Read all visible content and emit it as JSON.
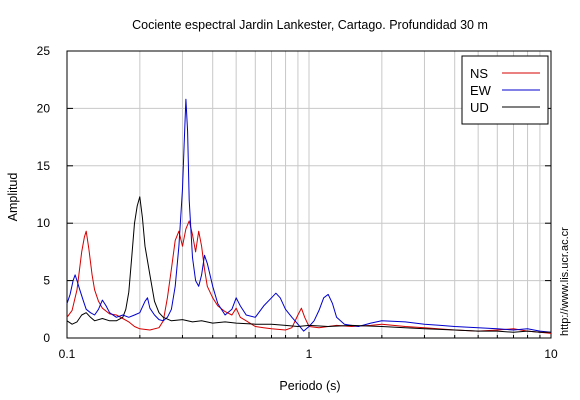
{
  "chart_data": {
    "type": "line",
    "title": "Cociente espectral Jardin Lankester, Cartago. Profundidad 30 m",
    "xlabel": "Periodo (s)",
    "ylabel": "Amplitud",
    "xscale": "log",
    "xlim": [
      0.1,
      10
    ],
    "ylim": [
      0,
      25
    ],
    "xticks": [
      {
        "value": 0.1,
        "label": "0.1"
      },
      {
        "value": 1,
        "label": "1"
      },
      {
        "value": 10,
        "label": "10"
      }
    ],
    "yticks": [
      {
        "value": 0,
        "label": "0"
      },
      {
        "value": 5,
        "label": "5"
      },
      {
        "value": 10,
        "label": "10"
      },
      {
        "value": 15,
        "label": "15"
      },
      {
        "value": 20,
        "label": "20"
      },
      {
        "value": 25,
        "label": "25"
      }
    ],
    "grid": true,
    "legend_position": "top-right",
    "credit": "http://www.lis.ucr.ac.cr",
    "series": [
      {
        "name": "NS",
        "color": "#d40000",
        "points": [
          [
            0.1,
            1.8
          ],
          [
            0.105,
            2.4
          ],
          [
            0.11,
            4.2
          ],
          [
            0.115,
            7.5
          ],
          [
            0.118,
            8.8
          ],
          [
            0.12,
            9.3
          ],
          [
            0.123,
            7.8
          ],
          [
            0.127,
            5.5
          ],
          [
            0.13,
            4.2
          ],
          [
            0.135,
            3.2
          ],
          [
            0.14,
            2.6
          ],
          [
            0.15,
            2.1
          ],
          [
            0.16,
            2.0
          ],
          [
            0.17,
            1.7
          ],
          [
            0.18,
            1.4
          ],
          [
            0.19,
            1.0
          ],
          [
            0.2,
            0.8
          ],
          [
            0.22,
            0.7
          ],
          [
            0.24,
            0.9
          ],
          [
            0.25,
            1.5
          ],
          [
            0.26,
            3.5
          ],
          [
            0.27,
            6.0
          ],
          [
            0.28,
            8.5
          ],
          [
            0.29,
            9.3
          ],
          [
            0.3,
            8.0
          ],
          [
            0.31,
            9.5
          ],
          [
            0.32,
            10.2
          ],
          [
            0.33,
            9.0
          ],
          [
            0.34,
            7.5
          ],
          [
            0.35,
            9.3
          ],
          [
            0.36,
            8.0
          ],
          [
            0.37,
            6.0
          ],
          [
            0.38,
            4.5
          ],
          [
            0.4,
            3.5
          ],
          [
            0.42,
            2.8
          ],
          [
            0.45,
            2.3
          ],
          [
            0.48,
            2.0
          ],
          [
            0.5,
            2.6
          ],
          [
            0.52,
            1.8
          ],
          [
            0.55,
            1.5
          ],
          [
            0.6,
            1.0
          ],
          [
            0.65,
            0.9
          ],
          [
            0.7,
            0.8
          ],
          [
            0.8,
            0.7
          ],
          [
            0.85,
            0.9
          ],
          [
            0.9,
            2.0
          ],
          [
            0.93,
            2.6
          ],
          [
            0.96,
            1.8
          ],
          [
            1.0,
            1.0
          ],
          [
            1.1,
            0.9
          ],
          [
            1.2,
            1.0
          ],
          [
            1.3,
            1.1
          ],
          [
            1.5,
            1.0
          ],
          [
            1.8,
            1.1
          ],
          [
            2.0,
            1.2
          ],
          [
            2.5,
            1.0
          ],
          [
            3.0,
            0.9
          ],
          [
            4.0,
            0.7
          ],
          [
            5.0,
            0.6
          ],
          [
            6.0,
            0.7
          ],
          [
            7.0,
            0.8
          ],
          [
            8.0,
            0.6
          ],
          [
            9.0,
            0.5
          ],
          [
            10.0,
            0.4
          ]
        ]
      },
      {
        "name": "EW",
        "color": "#0000cc",
        "points": [
          [
            0.1,
            3.0
          ],
          [
            0.103,
            3.8
          ],
          [
            0.106,
            5.0
          ],
          [
            0.108,
            5.5
          ],
          [
            0.11,
            5.0
          ],
          [
            0.113,
            4.2
          ],
          [
            0.117,
            3.2
          ],
          [
            0.12,
            2.5
          ],
          [
            0.125,
            2.2
          ],
          [
            0.13,
            2.0
          ],
          [
            0.135,
            2.5
          ],
          [
            0.14,
            3.3
          ],
          [
            0.145,
            2.8
          ],
          [
            0.15,
            2.2
          ],
          [
            0.16,
            1.8
          ],
          [
            0.17,
            2.0
          ],
          [
            0.18,
            1.8
          ],
          [
            0.19,
            2.0
          ],
          [
            0.2,
            2.2
          ],
          [
            0.21,
            3.2
          ],
          [
            0.215,
            3.5
          ],
          [
            0.22,
            2.6
          ],
          [
            0.23,
            2.0
          ],
          [
            0.24,
            1.6
          ],
          [
            0.25,
            1.5
          ],
          [
            0.26,
            1.8
          ],
          [
            0.27,
            2.5
          ],
          [
            0.28,
            4.5
          ],
          [
            0.29,
            8.0
          ],
          [
            0.3,
            13.0
          ],
          [
            0.305,
            17.0
          ],
          [
            0.31,
            20.8
          ],
          [
            0.315,
            18.0
          ],
          [
            0.32,
            12.0
          ],
          [
            0.33,
            7.0
          ],
          [
            0.34,
            5.0
          ],
          [
            0.35,
            4.5
          ],
          [
            0.36,
            5.5
          ],
          [
            0.37,
            7.2
          ],
          [
            0.38,
            6.5
          ],
          [
            0.4,
            4.5
          ],
          [
            0.42,
            3.0
          ],
          [
            0.45,
            2.0
          ],
          [
            0.48,
            2.5
          ],
          [
            0.5,
            3.5
          ],
          [
            0.52,
            2.8
          ],
          [
            0.55,
            2.0
          ],
          [
            0.6,
            1.8
          ],
          [
            0.65,
            2.8
          ],
          [
            0.7,
            3.5
          ],
          [
            0.73,
            3.9
          ],
          [
            0.76,
            3.5
          ],
          [
            0.8,
            2.5
          ],
          [
            0.85,
            1.8
          ],
          [
            0.9,
            1.2
          ],
          [
            0.95,
            0.6
          ],
          [
            1.0,
            1.0
          ],
          [
            1.05,
            1.5
          ],
          [
            1.1,
            2.4
          ],
          [
            1.15,
            3.5
          ],
          [
            1.2,
            3.8
          ],
          [
            1.25,
            3.0
          ],
          [
            1.3,
            1.8
          ],
          [
            1.4,
            1.2
          ],
          [
            1.6,
            1.0
          ],
          [
            1.8,
            1.3
          ],
          [
            2.0,
            1.5
          ],
          [
            2.5,
            1.4
          ],
          [
            3.0,
            1.2
          ],
          [
            3.5,
            1.1
          ],
          [
            4.0,
            1.0
          ],
          [
            5.0,
            0.9
          ],
          [
            6.0,
            0.8
          ],
          [
            7.0,
            0.7
          ],
          [
            8.0,
            0.8
          ],
          [
            9.0,
            0.6
          ],
          [
            10.0,
            0.5
          ]
        ]
      },
      {
        "name": "UD",
        "color": "#000000",
        "points": [
          [
            0.1,
            1.5
          ],
          [
            0.105,
            1.2
          ],
          [
            0.11,
            1.4
          ],
          [
            0.115,
            2.0
          ],
          [
            0.12,
            2.2
          ],
          [
            0.125,
            1.8
          ],
          [
            0.13,
            1.5
          ],
          [
            0.14,
            1.7
          ],
          [
            0.15,
            1.5
          ],
          [
            0.16,
            1.5
          ],
          [
            0.17,
            1.8
          ],
          [
            0.175,
            2.5
          ],
          [
            0.18,
            4.0
          ],
          [
            0.185,
            7.0
          ],
          [
            0.19,
            10.0
          ],
          [
            0.195,
            11.5
          ],
          [
            0.2,
            12.3
          ],
          [
            0.205,
            10.5
          ],
          [
            0.21,
            8.0
          ],
          [
            0.22,
            5.5
          ],
          [
            0.23,
            3.2
          ],
          [
            0.24,
            2.2
          ],
          [
            0.25,
            1.8
          ],
          [
            0.27,
            1.5
          ],
          [
            0.3,
            1.6
          ],
          [
            0.33,
            1.4
          ],
          [
            0.36,
            1.5
          ],
          [
            0.4,
            1.3
          ],
          [
            0.45,
            1.4
          ],
          [
            0.5,
            1.3
          ],
          [
            0.6,
            1.2
          ],
          [
            0.7,
            1.2
          ],
          [
            0.8,
            1.1
          ],
          [
            0.9,
            1.0
          ],
          [
            1.0,
            1.1
          ],
          [
            1.2,
            1.0
          ],
          [
            1.5,
            1.1
          ],
          [
            2.0,
            1.0
          ],
          [
            2.5,
            0.9
          ],
          [
            3.0,
            0.8
          ],
          [
            4.0,
            0.7
          ],
          [
            5.0,
            0.6
          ],
          [
            6.0,
            0.6
          ],
          [
            7.0,
            0.5
          ],
          [
            8.0,
            0.6
          ],
          [
            9.0,
            0.5
          ],
          [
            10.0,
            0.5
          ]
        ]
      }
    ]
  }
}
